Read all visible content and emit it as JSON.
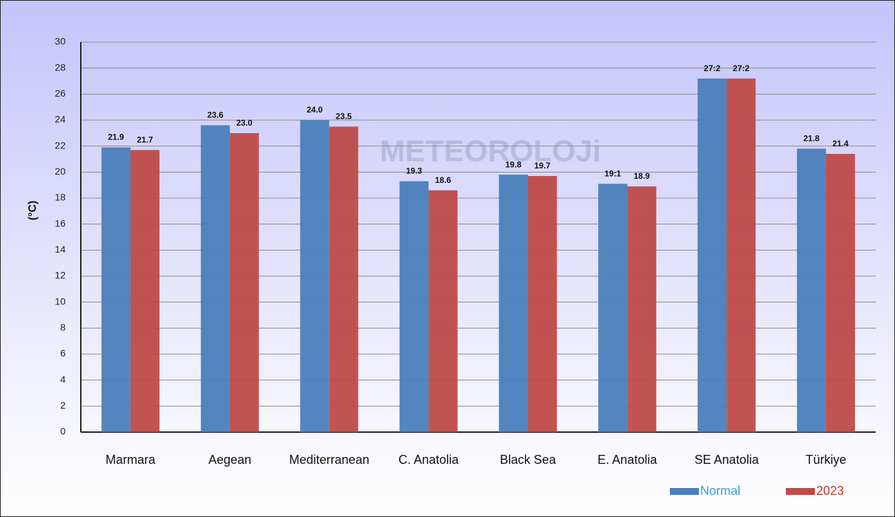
{
  "chart_data": {
    "type": "bar",
    "y_label": "(°C)",
    "watermark": "METEOROLOJi",
    "categories": [
      "Marmara",
      "Aegean",
      "Mediterranean",
      "C. Anatolia",
      "Black Sea",
      "E. Anatolia",
      "SE Anatolia",
      "Türkiye"
    ],
    "series": [
      {
        "name": "Normal",
        "color": "#4a7ebb",
        "values": [
          21.9,
          23.6,
          24.0,
          19.3,
          19.8,
          19.1,
          27.2,
          21.8
        ],
        "value_labels": [
          "21.9",
          "23.6",
          "24.0",
          "19.3",
          "19.8",
          "19:1",
          "27:2",
          "21.8"
        ]
      },
      {
        "name": "2023",
        "color": "#be4b48",
        "values": [
          21.7,
          23.0,
          23.5,
          18.6,
          19.7,
          18.9,
          27.2,
          21.4
        ],
        "value_labels": [
          "21.7",
          "23.0",
          "23.5",
          "18.6",
          "19.7",
          "18.9",
          "27:2",
          "21.4"
        ]
      }
    ],
    "ylim": [
      0,
      30
    ],
    "yticks": [
      0,
      2,
      4,
      6,
      8,
      10,
      12,
      14,
      16,
      18,
      20,
      22,
      24,
      26,
      28,
      30
    ],
    "grid": true,
    "legend": "bottom-right"
  }
}
